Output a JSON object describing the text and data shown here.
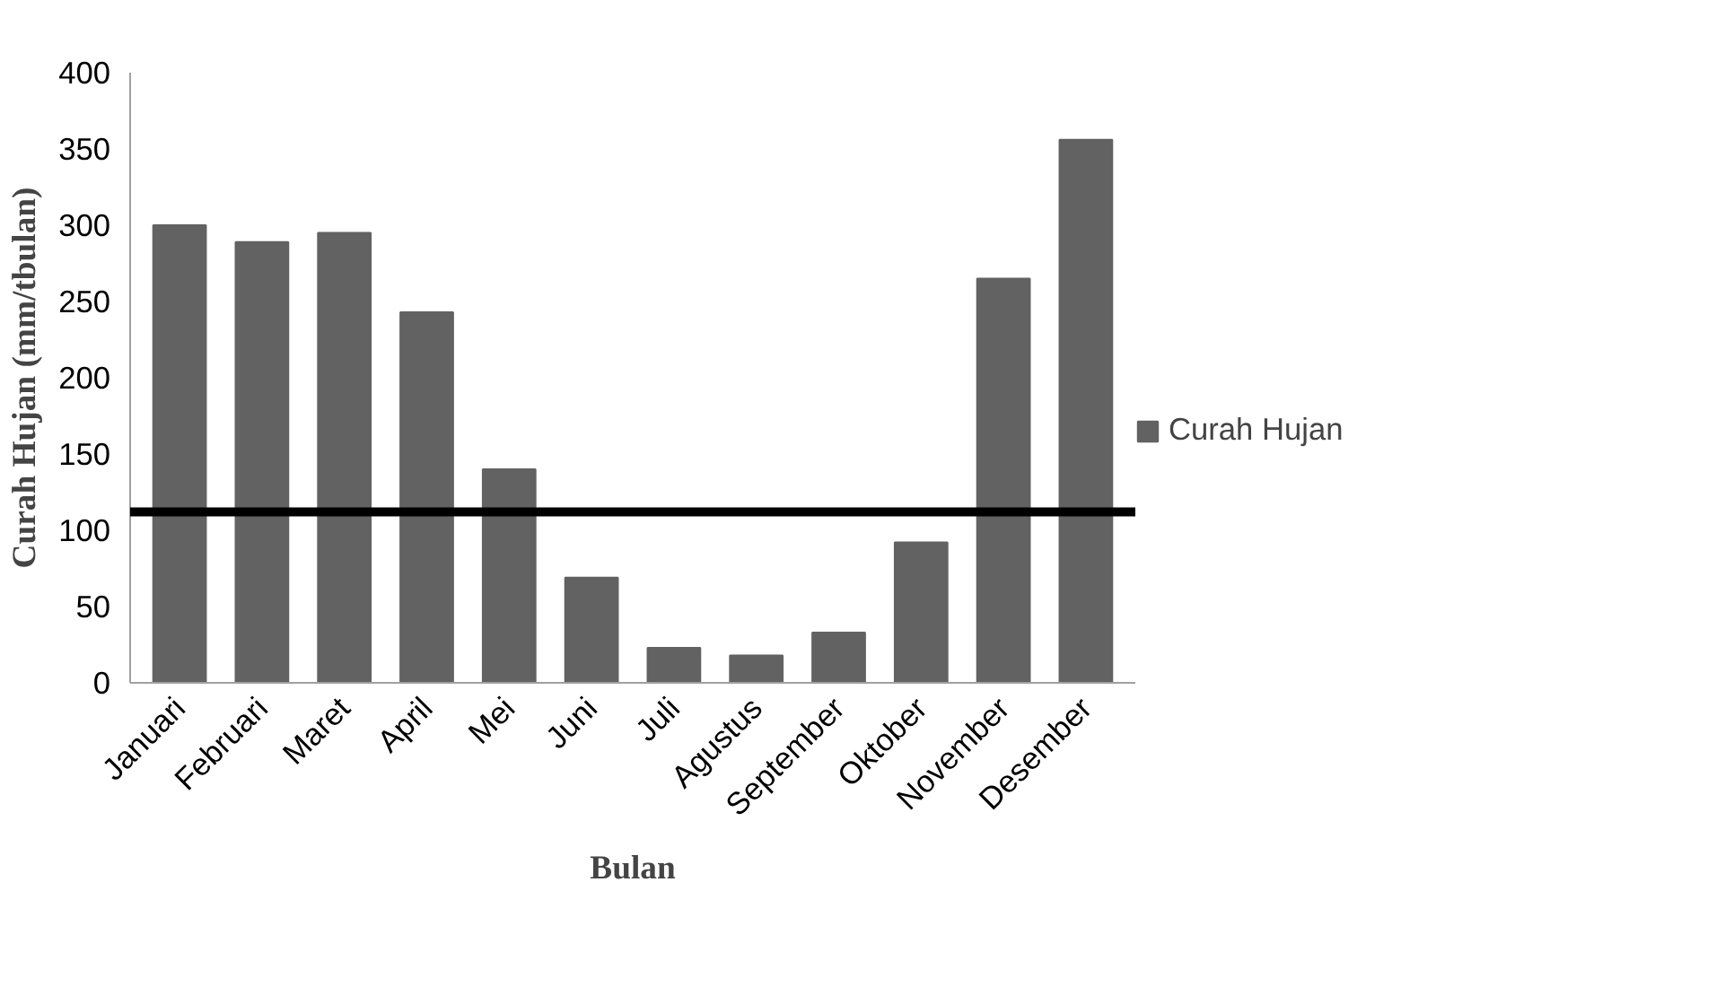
{
  "chart_data": {
    "type": "bar",
    "categories": [
      "Januari",
      "Februari",
      "Maret",
      "April",
      "Mei",
      "Juni",
      "Juli",
      "Agustus",
      "September",
      "Oktober",
      "November",
      "Desember"
    ],
    "series": [
      {
        "name": "Curah Hujan",
        "color": "#626262",
        "values": [
          300,
          289,
          295,
          243,
          140,
          69,
          23,
          18,
          33,
          92,
          265,
          356
        ]
      }
    ],
    "xlabel": "Bulan",
    "ylabel": "Curah Hujan (mm/tbulan)",
    "ylim": [
      0,
      400
    ],
    "yticks": [
      0,
      50,
      100,
      150,
      200,
      250,
      300,
      350,
      400
    ],
    "ref_lines": [
      {
        "axis": "y",
        "value": 112,
        "color": "#000000"
      }
    ],
    "legend": "right",
    "grid": false
  }
}
